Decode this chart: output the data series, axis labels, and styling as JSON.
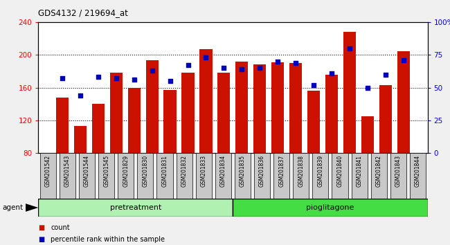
{
  "title": "GDS4132 / 219694_at",
  "samples": [
    "GSM201542",
    "GSM201543",
    "GSM201544",
    "GSM201545",
    "GSM201829",
    "GSM201830",
    "GSM201831",
    "GSM201832",
    "GSM201833",
    "GSM201834",
    "GSM201835",
    "GSM201836",
    "GSM201837",
    "GSM201838",
    "GSM201839",
    "GSM201840",
    "GSM201841",
    "GSM201842",
    "GSM201843",
    "GSM201844"
  ],
  "counts": [
    148,
    113,
    140,
    178,
    160,
    193,
    157,
    178,
    207,
    178,
    192,
    188,
    191,
    190,
    156,
    176,
    228,
    125,
    163,
    204
  ],
  "percentiles": [
    57,
    44,
    58,
    57,
    56,
    63,
    55,
    67,
    73,
    65,
    64,
    65,
    70,
    69,
    52,
    61,
    80,
    50,
    60,
    71
  ],
  "groups": [
    {
      "label": "pretreatment",
      "start": 0,
      "end": 10
    },
    {
      "label": "pioglitagone",
      "start": 10,
      "end": 20
    }
  ],
  "group_colors": [
    "#b0f0b0",
    "#44dd44"
  ],
  "ylim_left": [
    80,
    240
  ],
  "ylim_right": [
    0,
    100
  ],
  "yticks_left": [
    80,
    120,
    160,
    200,
    240
  ],
  "yticks_right": [
    0,
    25,
    50,
    75,
    100
  ],
  "grid_lines": [
    120,
    160,
    200
  ],
  "bar_color": "#cc1100",
  "dot_color": "#0000bb",
  "xticklabel_bg": "#c8c8c8",
  "plot_bg": "#ffffff",
  "fig_bg": "#f0f0f0",
  "legend_count_label": "count",
  "legend_pct_label": "percentile rank within the sample",
  "agent_label": "agent"
}
